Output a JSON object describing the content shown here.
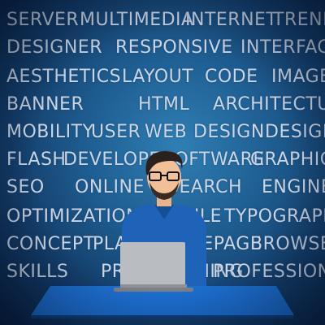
{
  "word_rows": [
    [
      "SERVER",
      "MULTIMEDIA",
      "INTERNET",
      "TREND"
    ],
    [
      "DESIGNER",
      "RESPONSIVE",
      "INTERFACE"
    ],
    [
      "AESTHETICS",
      "LAYOUT",
      "CODE",
      "IMAGE"
    ],
    [
      "BANNER",
      "HTML",
      "ARCHITECTURE"
    ],
    [
      "MOBILITY",
      "USER",
      "WEB",
      "DESIGN",
      "DESIGN"
    ],
    [
      "FLASH",
      "DEVELOPER",
      "SOFTWARE",
      "GRAPHICS"
    ],
    [
      "SEO",
      "ONLINE",
      "SEARCH",
      "ENGINE"
    ],
    [
      "OPTIMIZATION",
      "MOBILE",
      "TYPOGRAPHY"
    ],
    [
      "CONCEPT",
      "PLANNING",
      "HOMEPAGE",
      "BROWSER"
    ],
    [
      "SKILLS",
      "PROGRAMMING",
      "PROFESSIONAL"
    ]
  ]
}
